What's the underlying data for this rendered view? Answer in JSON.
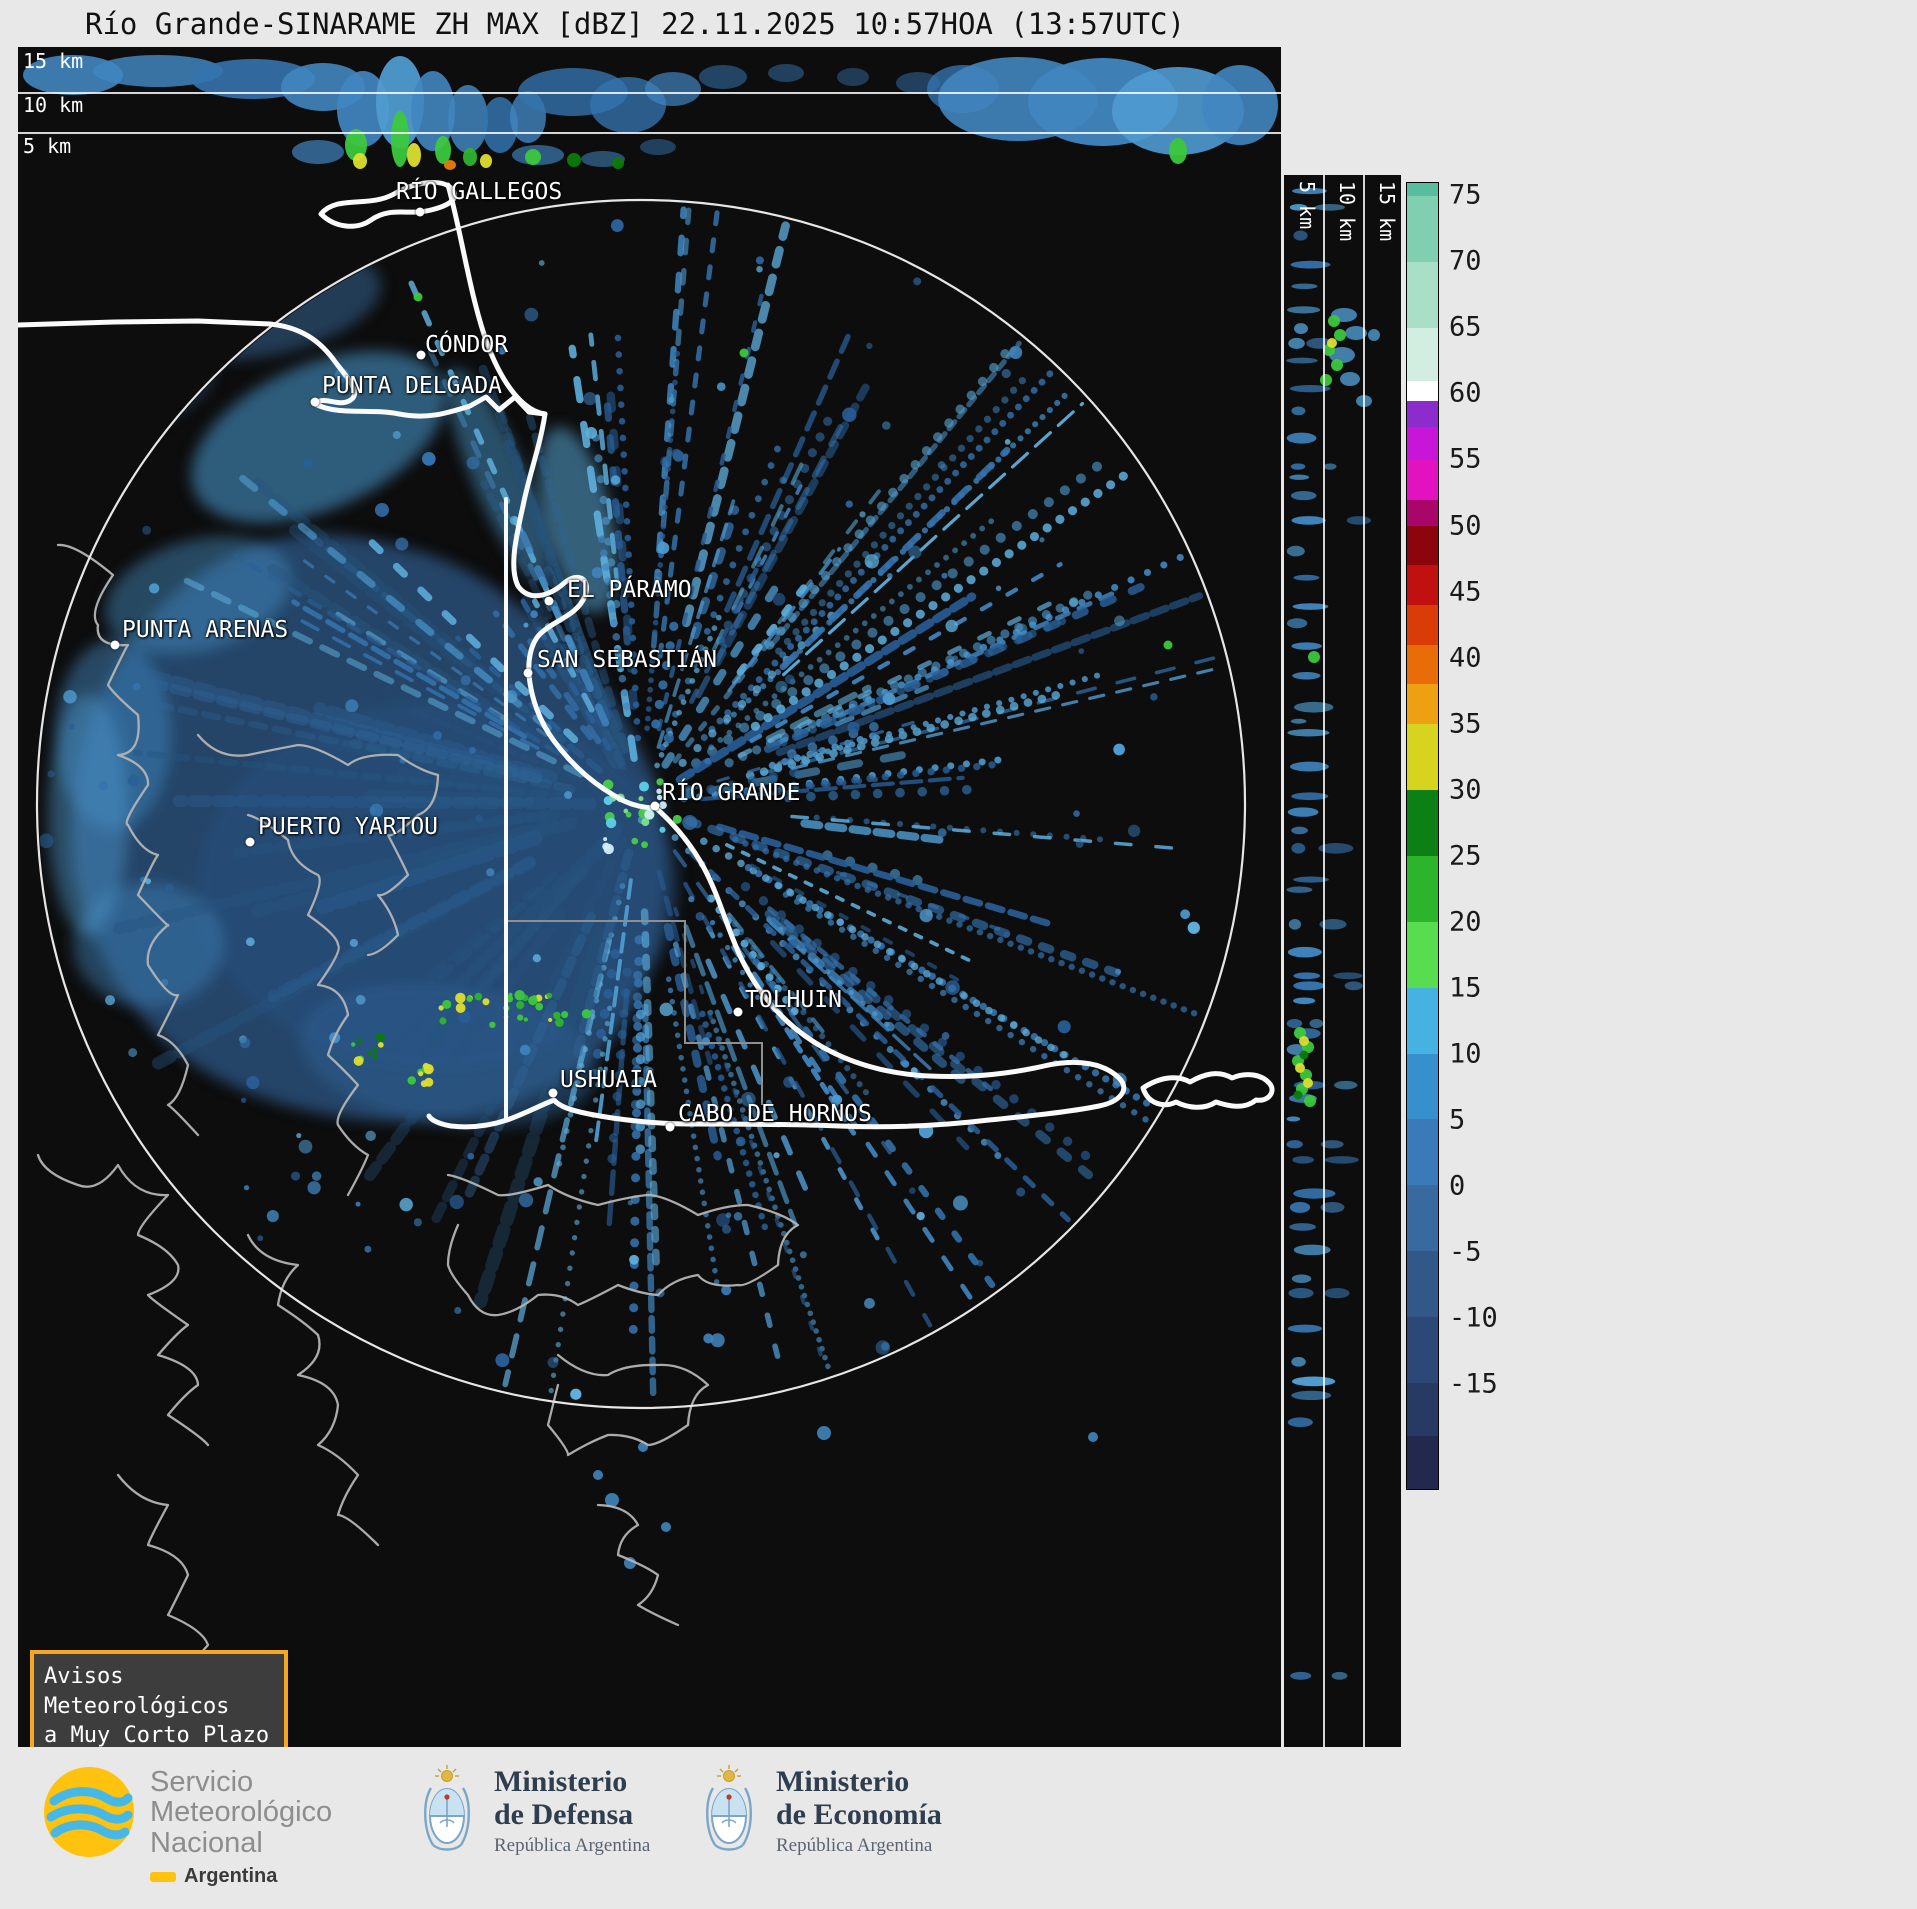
{
  "title": "Río Grande-SINARAME ZH MAX [dBZ] 22.11.2025 10:57HOA (13:57UTC)",
  "radar": {
    "station": "Río Grande",
    "network": "SINARAME",
    "product": "ZH MAX",
    "unit": "dBZ",
    "date": "22.11.2025",
    "time_local": "10:57HOA",
    "time_utc": "13:57UTC"
  },
  "top_panel": {
    "altitude_labels": [
      "15 km",
      "10 km",
      "5 km"
    ]
  },
  "right_panel": {
    "altitude_labels": [
      "5 km",
      "10 km",
      "15 km"
    ]
  },
  "colorbar": {
    "unit": "dBZ",
    "scale_max": 76,
    "scale_min": -23,
    "ticks": [
      75,
      70,
      65,
      60,
      55,
      50,
      45,
      40,
      35,
      30,
      25,
      20,
      15,
      10,
      5,
      0,
      -5,
      -10,
      -15
    ],
    "segments": [
      [
        76,
        75,
        "#58bd9d"
      ],
      [
        75,
        70,
        "#7fcfb0"
      ],
      [
        70,
        65,
        "#a8dfc6"
      ],
      [
        65,
        61,
        "#d2eee0"
      ],
      [
        61,
        59.5,
        "#ffffff"
      ],
      [
        59.5,
        57.5,
        "#8c2ccc"
      ],
      [
        57.5,
        55,
        "#c816d8"
      ],
      [
        55,
        52,
        "#e312c0"
      ],
      [
        52,
        50,
        "#a80668"
      ],
      [
        50,
        47,
        "#8c040c"
      ],
      [
        47,
        44,
        "#c01010"
      ],
      [
        44,
        41,
        "#d93c06"
      ],
      [
        41,
        38,
        "#e86c08"
      ],
      [
        38,
        35,
        "#eda012"
      ],
      [
        35,
        30,
        "#d6d41e"
      ],
      [
        30,
        25,
        "#0c8014"
      ],
      [
        25,
        20,
        "#2cb42c"
      ],
      [
        20,
        15,
        "#58dc50"
      ],
      [
        15,
        10,
        "#46b2e2"
      ],
      [
        10,
        5,
        "#3590cc"
      ],
      [
        5,
        0,
        "#3a7ab8"
      ],
      [
        0,
        -5,
        "#38699f"
      ],
      [
        -5,
        -10,
        "#32588a"
      ],
      [
        -10,
        -15,
        "#2c4876"
      ],
      [
        -15,
        -19,
        "#263a64"
      ],
      [
        -19,
        -23,
        "#23284e"
      ]
    ]
  },
  "map": {
    "cities": [
      {
        "id": "rio-gallegos",
        "name": "RÍO GALLEGOS",
        "label": [
          378,
          4
        ],
        "dot": [
          402,
          37
        ]
      },
      {
        "id": "condor",
        "name": "CÓNDOR",
        "label": [
          407,
          157
        ],
        "dot": [
          403,
          180
        ]
      },
      {
        "id": "punta-delgada",
        "name": "PUNTA DELGADA",
        "label": [
          304,
          198
        ],
        "dot": [
          297,
          227
        ]
      },
      {
        "id": "el-paramo",
        "name": "EL PÁRAMO",
        "label": [
          549,
          402
        ],
        "dot": [
          531,
          426
        ]
      },
      {
        "id": "san-sebastian",
        "name": "SAN SEBASTIÁN",
        "label": [
          519,
          472
        ],
        "dot": [
          510,
          498
        ]
      },
      {
        "id": "punta-arenas",
        "name": "PUNTA ARENAS",
        "label": [
          104,
          442
        ],
        "dot": [
          97,
          470
        ]
      },
      {
        "id": "rio-grande",
        "name": "RÍO GRANDE",
        "label": [
          644,
          605
        ],
        "dot": [
          637,
          631
        ]
      },
      {
        "id": "puerto-yartou",
        "name": "PUERTO YARTOU",
        "label": [
          240,
          639
        ],
        "dot": [
          232,
          667
        ]
      },
      {
        "id": "tolhuin",
        "name": "TOLHUIN",
        "label": [
          727,
          812
        ],
        "dot": [
          720,
          837
        ]
      },
      {
        "id": "ushuaia",
        "name": "USHUAIA",
        "label": [
          542,
          892
        ],
        "dot": [
          535,
          918
        ]
      },
      {
        "id": "cabo-de-hornos",
        "name": "CABO DE HORNOS",
        "label": [
          660,
          926
        ],
        "dot": [
          652,
          952
        ]
      }
    ]
  },
  "notice": {
    "lines": [
      "Avisos Meteorológicos",
      "a Muy Corto Plazo"
    ]
  },
  "footer": {
    "smn": {
      "name_lines": [
        "Servicio",
        "Meteorológico",
        "Nacional"
      ],
      "country": "Argentina"
    },
    "ministries": [
      {
        "lines": [
          "Ministerio",
          "de Defensa"
        ],
        "sub": "República Argentina"
      },
      {
        "lines": [
          "Ministerio",
          "de Economía"
        ],
        "sub": "República Argentina"
      }
    ]
  }
}
